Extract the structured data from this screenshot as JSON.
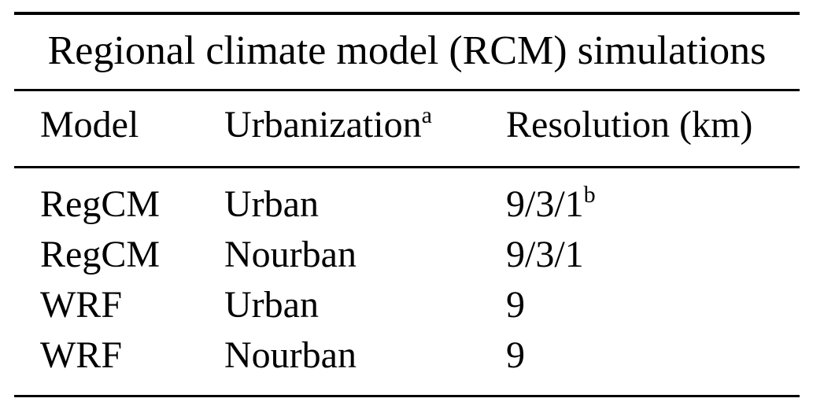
{
  "page": {
    "background": "#ffffff",
    "text_color": "#000000",
    "rule_color": "#000000"
  },
  "table": {
    "title": "Regional climate model (RCM) simulations",
    "columns": [
      {
        "label": "Model",
        "sup": ""
      },
      {
        "label": "Urbanization",
        "sup": "a"
      },
      {
        "label": "Resolution (km)",
        "sup": ""
      }
    ],
    "rows": [
      {
        "model": "RegCM",
        "urbanization": "Urban",
        "resolution": "9/3/1",
        "resolution_sup": "b"
      },
      {
        "model": "RegCM",
        "urbanization": "Nourban",
        "resolution": "9/3/1",
        "resolution_sup": ""
      },
      {
        "model": "WRF",
        "urbanization": "Urban",
        "resolution": "9",
        "resolution_sup": ""
      },
      {
        "model": "WRF",
        "urbanization": "Nourban",
        "resolution": "9",
        "resolution_sup": ""
      }
    ]
  }
}
